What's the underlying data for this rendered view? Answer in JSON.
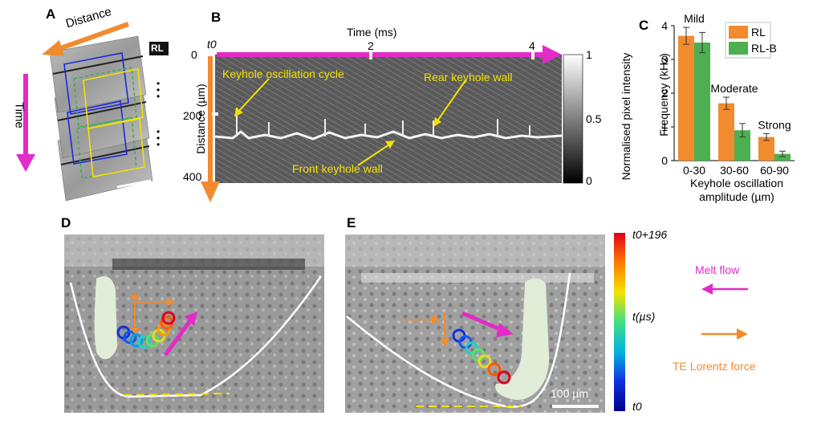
{
  "panels": {
    "A": {
      "label": "A",
      "distance_label": "Distance",
      "time_label": "Time",
      "rl_badge": "RL",
      "dots": "•\n•\n•"
    },
    "B": {
      "label": "B",
      "t0_label": "t0",
      "time_axis_label": "Time (ms)",
      "time_ticks": [
        "2",
        "4"
      ],
      "distance_axis_label": "Distance (µm)",
      "distance_ticks": [
        "0",
        "200",
        "400"
      ],
      "annotations": {
        "cycle": "Keyhole oscillation cycle",
        "rear": "Rear keyhole wall",
        "front": "Front keyhole wall"
      },
      "colorbar": {
        "title": "Normalised pixel intensity",
        "ticks": [
          "1",
          "0.5",
          "0"
        ]
      }
    },
    "C": {
      "label": "C",
      "ylabel": "Frequency (kHz)",
      "xlabel": "Keyhole oscillation amplitude (µm)",
      "yticks": [
        "0",
        "1",
        "2",
        "3",
        "4"
      ],
      "categories": [
        "0-30",
        "30-60",
        "60-90"
      ],
      "group_labels": [
        "Mild",
        "Moderate",
        "Strong"
      ],
      "legend": [
        "RL",
        "RL-B"
      ]
    },
    "D": {
      "label": "D"
    },
    "E": {
      "label": "E",
      "scalebar": "100 µm",
      "colorbar": {
        "top": "t0+196",
        "middle": "t(µs)",
        "bottom": "t0"
      }
    }
  },
  "legend_right": {
    "melt_flow": "Melt flow",
    "lorentz": "TE Lorentz force"
  },
  "colors": {
    "orange": "#f28a2e",
    "green": "#4cb050",
    "magenta": "#e22bc8",
    "yellow": "#f2e200"
  },
  "chart_data": {
    "type": "bar",
    "categories": [
      "0-30",
      "30-60",
      "60-90"
    ],
    "series": [
      {
        "name": "RL",
        "values": [
          3.7,
          1.7,
          0.7
        ],
        "errors": [
          0.25,
          0.18,
          0.1
        ]
      },
      {
        "name": "RL-B",
        "values": [
          3.5,
          0.9,
          0.2
        ],
        "errors": [
          0.3,
          0.2,
          0.08
        ]
      }
    ],
    "ylabel": "Frequency (kHz)",
    "xlabel": "Keyhole oscillation amplitude (µm)",
    "ylim": [
      0,
      4
    ],
    "annotations": [
      "Mild",
      "Moderate",
      "Strong"
    ],
    "legend_position": "top-right"
  }
}
